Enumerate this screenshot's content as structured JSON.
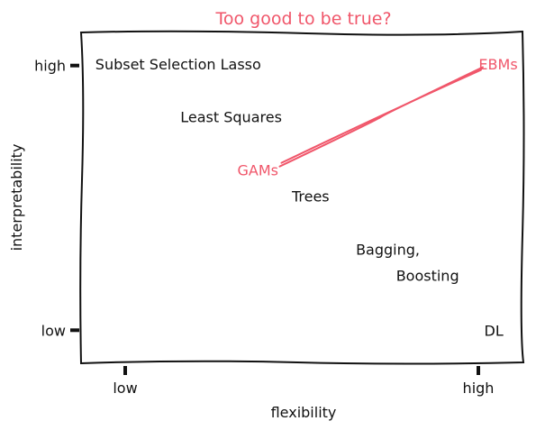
{
  "chart_data": {
    "type": "scatter",
    "title": "Too good to be true?",
    "xlabel": "flexibility",
    "ylabel": "interpretability",
    "xlim": [
      0,
      1
    ],
    "ylim": [
      0,
      1
    ],
    "x_ticks": [
      {
        "value": 0.1,
        "label": "low"
      },
      {
        "value": 0.9,
        "label": "high"
      }
    ],
    "y_ticks": [
      {
        "value": 0.1,
        "label": "low"
      },
      {
        "value": 0.9,
        "label": "high"
      }
    ],
    "grid": false,
    "highlight_color": "#f0566a",
    "annotations": [
      {
        "text": "Subset Selection Lasso",
        "x": 0.22,
        "y": 0.905,
        "anchor": "middle"
      },
      {
        "text": "Least Squares",
        "x": 0.34,
        "y": 0.745,
        "anchor": "middle"
      },
      {
        "text": "GAMs",
        "x": 0.447,
        "y": 0.585,
        "anchor": "end",
        "highlight": true
      },
      {
        "text": "Trees",
        "x": 0.52,
        "y": 0.505,
        "anchor": "middle"
      },
      {
        "text": "Bagging,",
        "x": 0.695,
        "y": 0.345,
        "anchor": "middle"
      },
      {
        "text": "Boosting",
        "x": 0.785,
        "y": 0.265,
        "anchor": "middle"
      },
      {
        "text": "DL",
        "x": 0.935,
        "y": 0.1,
        "anchor": "middle"
      },
      {
        "text": "EBMs",
        "x": 0.945,
        "y": 0.905,
        "anchor": "middle",
        "highlight": true
      }
    ],
    "arrows": [
      {
        "from": [
          0.45,
          0.595
        ],
        "to": [
          0.91,
          0.895
        ]
      }
    ]
  }
}
